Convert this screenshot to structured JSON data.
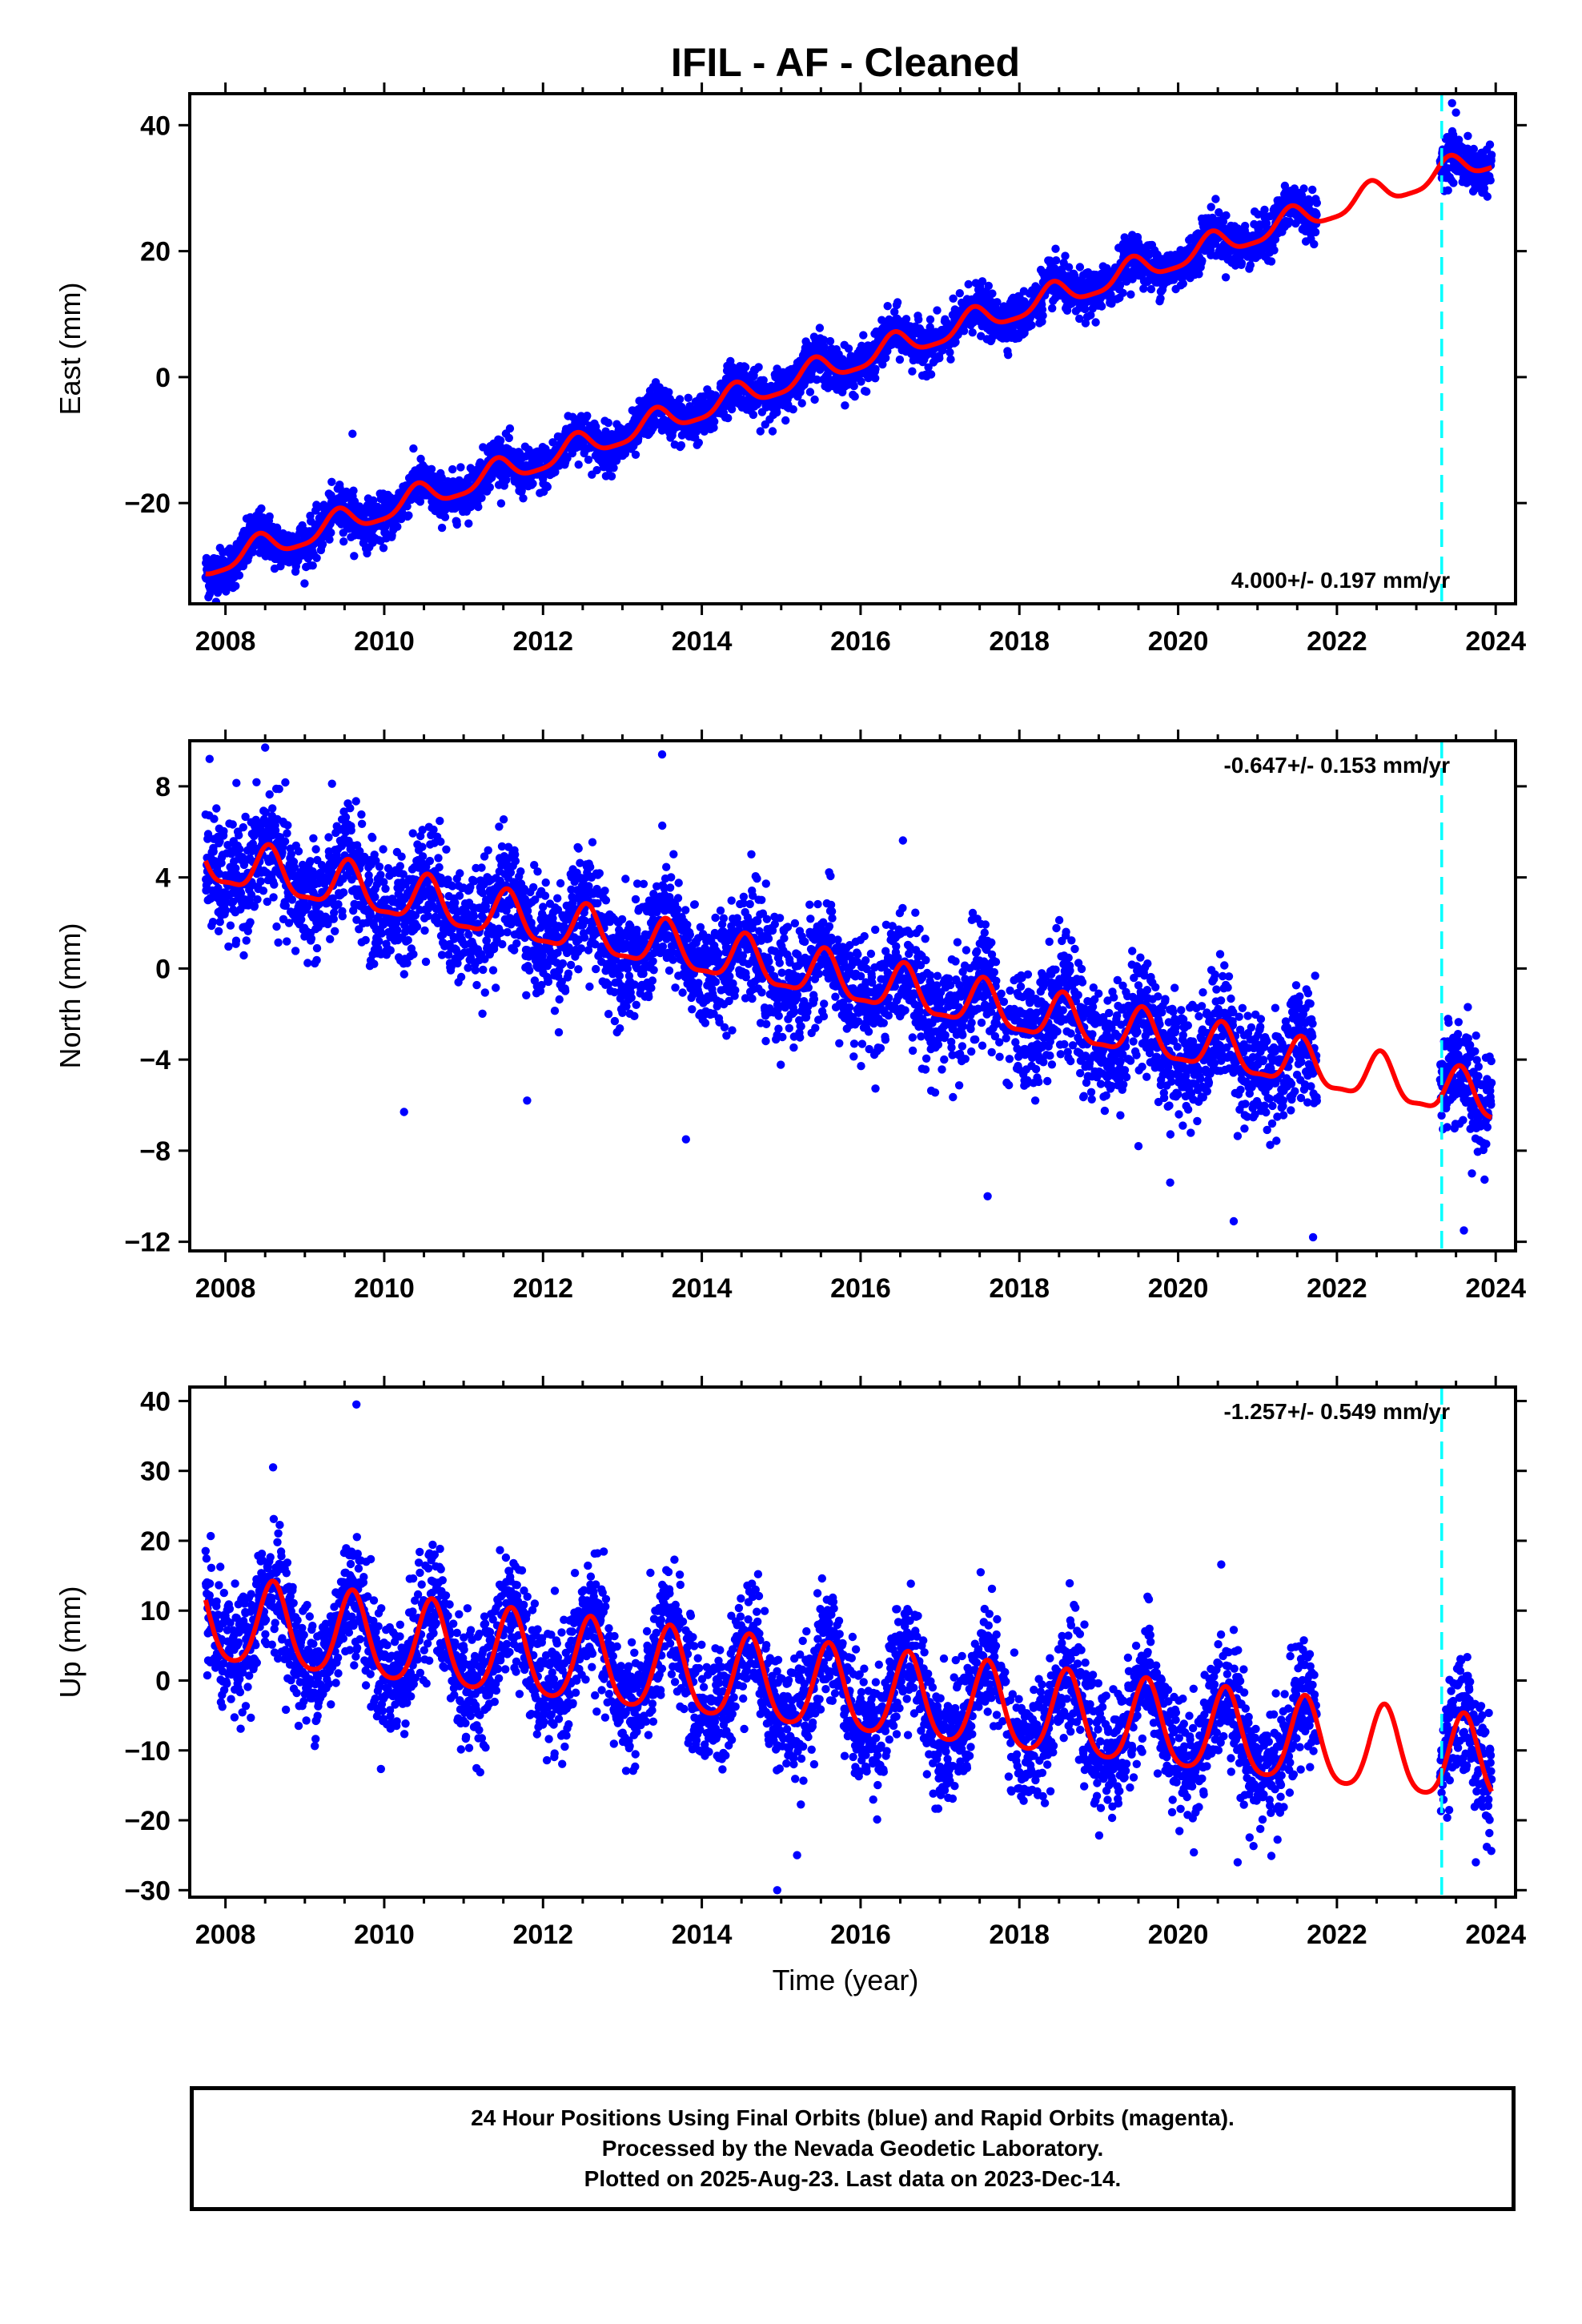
{
  "title": "IFIL  - AF - Cleaned",
  "xlabel": "Time (year)",
  "footer": {
    "line1": "24 Hour Positions Using Final Orbits (blue) and Rapid Orbits (magenta).",
    "line2": "Processed by the Nevada Geodetic Laboratory.",
    "line3": "Plotted on 2025-Aug-23. Last data on 2023-Dec-14."
  },
  "colors": {
    "points": "#0000ff",
    "fit": "#ff0000",
    "equipment_change": "#00ffff"
  },
  "chart_data": [
    {
      "type": "scatter",
      "name": "east",
      "ylabel": "East (mm)",
      "rate_label": "4.000+/- 0.197 mm/yr",
      "rate_position": "bottom-right",
      "xlim": [
        2007.55,
        2024.25
      ],
      "ylim": [
        -36,
        45
      ],
      "yticks": [
        -20,
        0,
        20,
        40
      ],
      "xticks": [
        2008,
        2010,
        2012,
        2014,
        2016,
        2018,
        2020,
        2022,
        2024
      ],
      "data_start": 2007.75,
      "data_end": 2023.95,
      "gap": [
        2021.75,
        2023.3
      ],
      "equipment_change": 2023.32,
      "fit": {
        "intercept_2008": -29.0,
        "rate": 4.0,
        "annual_amp": 2.0,
        "annual_phase_peak": 0.42,
        "semiannual_amp": 0.5
      },
      "scatter_sd": 1.8,
      "outliers": [
        [
          2007.8,
          -34.5
        ],
        [
          2009.6,
          -9.0
        ],
        [
          2023.45,
          43.5
        ],
        [
          2023.5,
          42.0
        ]
      ]
    },
    {
      "type": "scatter",
      "name": "north",
      "ylabel": "North (mm)",
      "rate_label": "-0.647+/- 0.153 mm/yr",
      "rate_position": "top-right",
      "xlim": [
        2007.55,
        2024.25
      ],
      "ylim": [
        -12.4,
        10.0
      ],
      "yticks": [
        -12,
        -8,
        -4,
        0,
        4,
        8
      ],
      "xticks": [
        2008,
        2010,
        2012,
        2014,
        2016,
        2018,
        2020,
        2022,
        2024
      ],
      "data_start": 2007.75,
      "data_end": 2023.95,
      "gap": [
        2021.75,
        2023.3
      ],
      "equipment_change": 2023.32,
      "fit": {
        "intercept_2008": 4.5,
        "rate": -0.647,
        "annual_amp": 1.0,
        "annual_phase_peak": 0.55,
        "semiannual_amp": 0.3
      },
      "scatter_sd": 1.25,
      "outliers": [
        [
          2007.8,
          9.2
        ],
        [
          2008.5,
          9.7
        ],
        [
          2010.25,
          -6.3
        ],
        [
          2011.8,
          -5.8
        ],
        [
          2013.5,
          9.4
        ],
        [
          2013.8,
          -7.5
        ],
        [
          2017.6,
          -10.0
        ],
        [
          2019.5,
          -7.8
        ],
        [
          2019.9,
          -9.4
        ],
        [
          2020.7,
          -11.1
        ],
        [
          2021.7,
          -11.8
        ],
        [
          2023.6,
          -11.5
        ],
        [
          2023.7,
          -9.0
        ]
      ]
    },
    {
      "type": "scatter",
      "name": "up",
      "ylabel": "Up (mm)",
      "rate_label": "-1.257+/- 0.549 mm/yr",
      "rate_position": "top-right",
      "xlim": [
        2007.55,
        2024.25
      ],
      "ylim": [
        -31,
        42
      ],
      "yticks": [
        -30,
        -20,
        -10,
        0,
        10,
        20,
        30,
        40
      ],
      "xticks": [
        2008,
        2010,
        2012,
        2014,
        2016,
        2018,
        2020,
        2022,
        2024
      ],
      "data_start": 2007.75,
      "data_end": 2023.95,
      "gap": [
        2021.75,
        2023.3
      ],
      "equipment_change": 2023.32,
      "fit": {
        "intercept_2008": 8.0,
        "rate": -1.257,
        "annual_amp": 6.0,
        "annual_phase_peak": 0.6,
        "semiannual_amp": 1.0
      },
      "scatter_sd": 4.2,
      "outliers": [
        [
          2009.65,
          39.5
        ],
        [
          2008.6,
          30.5
        ],
        [
          2014.95,
          -30.0
        ],
        [
          2015.2,
          -25.0
        ],
        [
          2020.75,
          -26.0
        ],
        [
          2023.75,
          -26.0
        ]
      ]
    }
  ]
}
